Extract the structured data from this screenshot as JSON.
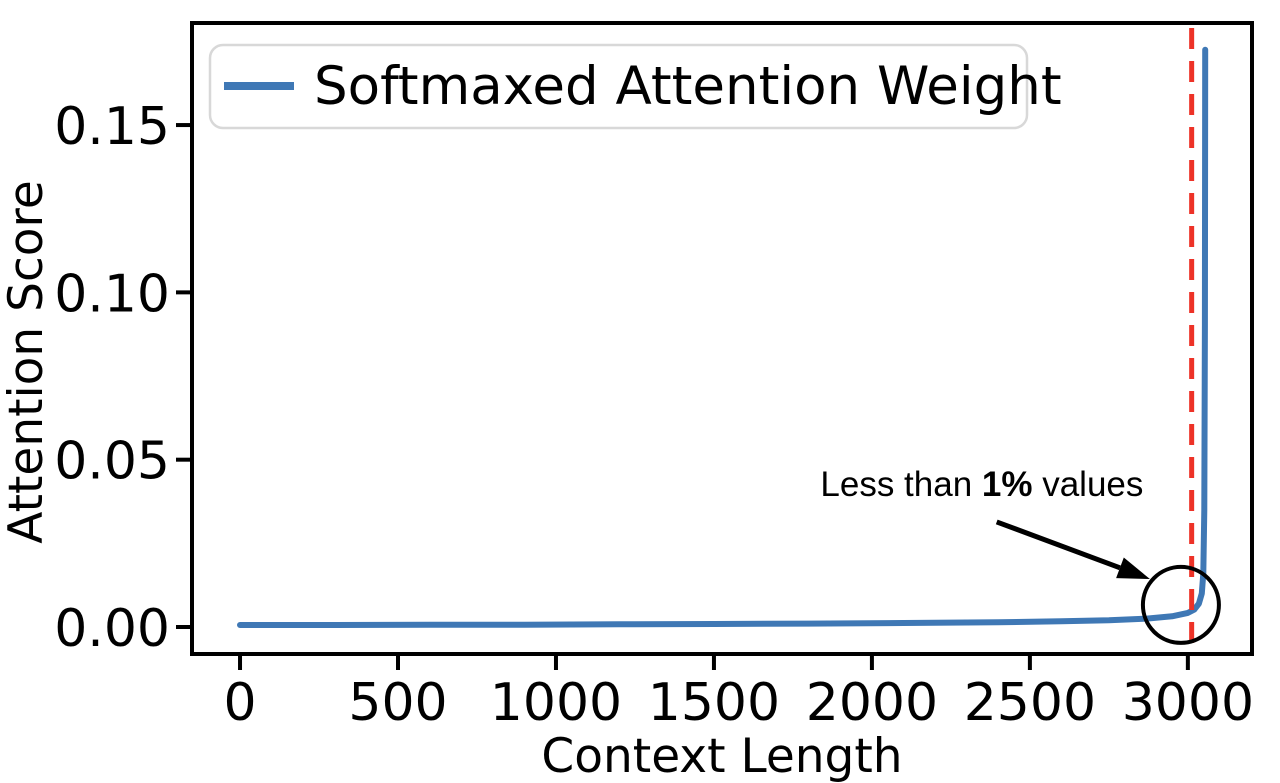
{
  "figure": {
    "background": "#ffffff"
  },
  "chart_data": {
    "type": "line",
    "title": "",
    "xlabel": "Context Length",
    "ylabel": "Attention Score",
    "xlim": [
      -152,
      3203
    ],
    "ylim": [
      -0.00807,
      0.1805
    ],
    "grid": false,
    "axis_color": "#000000",
    "x_ticks": {
      "values": [
        0,
        500,
        1000,
        1500,
        2000,
        2500,
        3000
      ],
      "labels": [
        "0",
        "500",
        "1000",
        "1500",
        "2000",
        "2500",
        "3000"
      ]
    },
    "y_ticks": {
      "values": [
        0.0,
        0.05,
        0.1,
        0.15
      ],
      "labels": [
        "0.00",
        "0.05",
        "0.10",
        "0.15"
      ]
    },
    "legend": {
      "position": "upper left",
      "label": "Softmaxed Attention Weight",
      "border_color": "#d8d8d8",
      "background": "#ffffff"
    },
    "series": [
      {
        "name": "Softmaxed Attention Weight",
        "color": "#3f78b5",
        "line_width": 6,
        "points": [
          [
            0,
            0.0006
          ],
          [
            300,
            0.0006
          ],
          [
            600,
            0.00065
          ],
          [
            900,
            0.0007
          ],
          [
            1200,
            0.0008
          ],
          [
            1500,
            0.0009
          ],
          [
            1800,
            0.001
          ],
          [
            2100,
            0.0012
          ],
          [
            2400,
            0.0014
          ],
          [
            2600,
            0.0017
          ],
          [
            2750,
            0.002
          ],
          [
            2870,
            0.0025
          ],
          [
            2950,
            0.0032
          ],
          [
            3000,
            0.0042
          ],
          [
            3020,
            0.0052
          ],
          [
            3035,
            0.007
          ],
          [
            3044,
            0.01
          ],
          [
            3049,
            0.016
          ],
          [
            3052,
            0.035
          ],
          [
            3054,
            0.09
          ],
          [
            3055,
            0.1725
          ]
        ]
      }
    ],
    "threshold_line": {
      "x": 3012,
      "color": "#ed3227",
      "style": "dashed",
      "line_width": 5
    },
    "annotation": {
      "text_prefix": "Less than ",
      "text_bold": "1%",
      "text_suffix": " values",
      "text_xy": [
        2348,
        0.043
      ],
      "arrow_tail_xy": [
        2395,
        0.0314
      ],
      "arrow_tip_xy": [
        2880,
        0.01435
      ],
      "circle_xy": [
        2978,
        0.0066
      ],
      "circle_radius_px": 38,
      "color": "#000000"
    }
  }
}
